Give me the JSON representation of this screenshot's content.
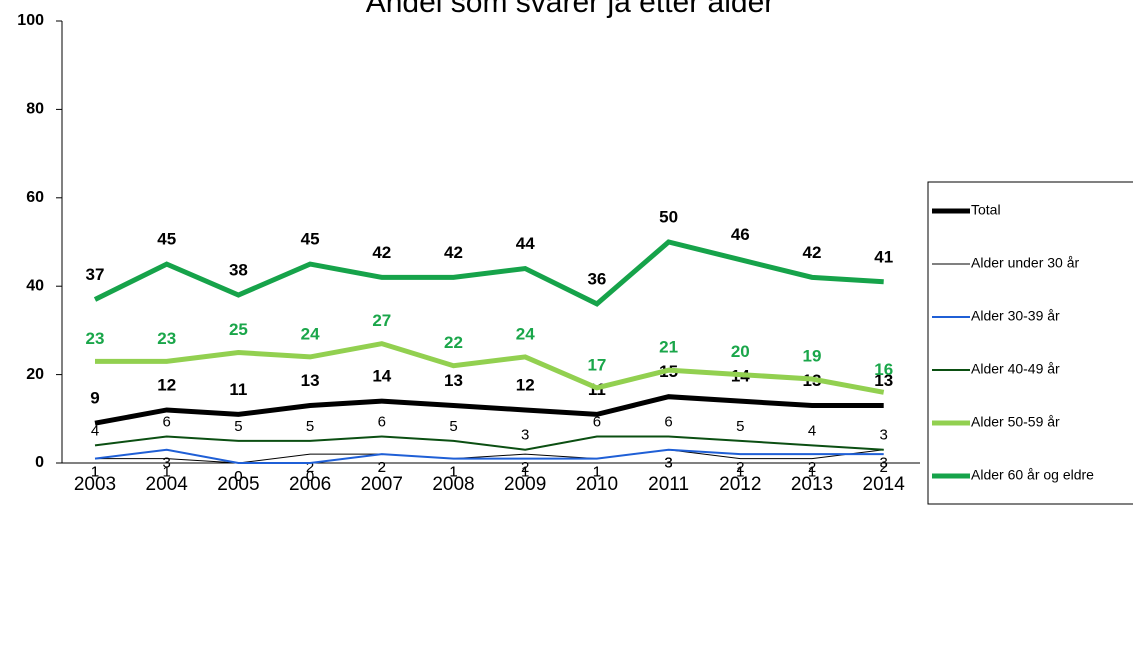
{
  "chart_data": {
    "type": "line",
    "title": "Andel som svarer ja etter alder",
    "categories": [
      "2003",
      "2004",
      "2005",
      "2006",
      "2007",
      "2008",
      "2009",
      "2010",
      "2011",
      "2012",
      "2013",
      "2014"
    ],
    "ylim": [
      0,
      100
    ],
    "yticks": [
      0,
      20,
      40,
      60,
      80,
      100
    ],
    "grid": false,
    "legend": "right",
    "series": [
      {
        "name": "Total",
        "color": "#000000",
        "width": 5,
        "label_color": "#000000",
        "label_bold": true,
        "values": [
          9,
          12,
          11,
          13,
          14,
          13,
          12,
          11,
          15,
          14,
          13,
          13
        ]
      },
      {
        "name": "Alder under 30 år",
        "color": "#000000",
        "width": 1,
        "label_color": "#000000",
        "label_bold": false,
        "values": [
          1,
          1,
          0,
          2,
          2,
          1,
          2,
          1,
          3,
          1,
          1,
          3
        ]
      },
      {
        "name": "Alder 30-39 år",
        "color": "#1f5fd6",
        "width": 2,
        "label_color": "#000000",
        "label_bold": false,
        "values": [
          1,
          3,
          0,
          0,
          2,
          1,
          1,
          1,
          3,
          2,
          2,
          2
        ]
      },
      {
        "name": "Alder 40-49 år",
        "color": "#0b4f12",
        "width": 2,
        "label_color": "#000000",
        "label_bold": false,
        "values": [
          4,
          6,
          5,
          5,
          6,
          5,
          3,
          6,
          6,
          5,
          4,
          3
        ]
      },
      {
        "name": "Alder 50-59 år",
        "color": "#92d050",
        "width": 5,
        "label_color": "#1aa64a",
        "label_bold": true,
        "values": [
          23,
          23,
          25,
          24,
          27,
          22,
          24,
          17,
          21,
          20,
          19,
          16
        ]
      },
      {
        "name": "Alder 60 år og eldre",
        "color": "#16a34a",
        "width": 5,
        "label_color": "#000000",
        "label_bold": true,
        "values": [
          37,
          45,
          38,
          45,
          42,
          42,
          44,
          36,
          50,
          46,
          42,
          41
        ]
      }
    ]
  }
}
